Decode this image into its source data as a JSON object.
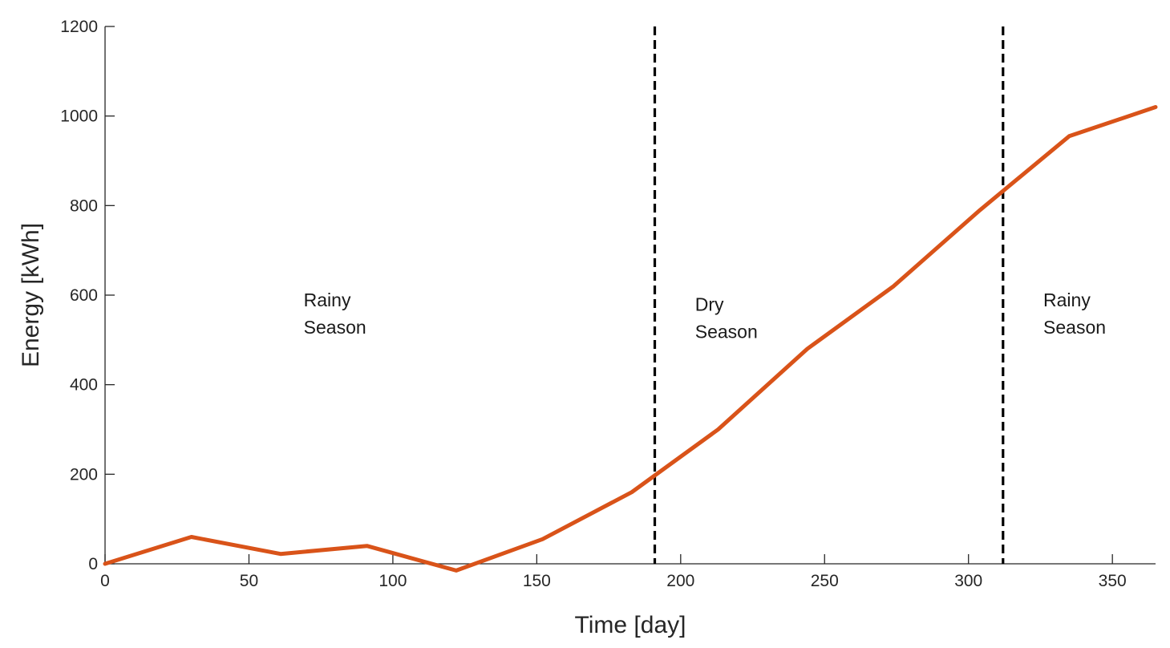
{
  "chart_data": {
    "type": "line",
    "xlabel": "Time [day]",
    "ylabel": "Energy [kWh]",
    "xlim": [
      0,
      365
    ],
    "ylim": [
      0,
      1200
    ],
    "xticks": [
      0,
      50,
      100,
      150,
      200,
      250,
      300,
      350
    ],
    "yticks": [
      0,
      200,
      400,
      600,
      800,
      1000,
      1200
    ],
    "grid": false,
    "series": [
      {
        "color": "#d95319",
        "x": [
          0,
          30,
          61,
          91,
          122,
          152,
          183,
          213,
          244,
          274,
          304,
          335,
          365
        ],
        "y": [
          0,
          60,
          22,
          40,
          -15,
          55,
          160,
          300,
          480,
          620,
          790,
          955,
          1020
        ]
      }
    ],
    "vlines": [
      {
        "x": 191,
        "style": "dashed",
        "color": "#000000"
      },
      {
        "x": 312,
        "style": "dashed",
        "color": "#000000"
      }
    ],
    "annotations": [
      {
        "lines": [
          "Rainy",
          "Season"
        ],
        "x": 69,
        "y": 575
      },
      {
        "lines": [
          "Dry",
          "Season"
        ],
        "x": 205,
        "y": 565
      },
      {
        "lines": [
          "Rainy",
          "Season"
        ],
        "x": 326,
        "y": 575
      }
    ]
  }
}
